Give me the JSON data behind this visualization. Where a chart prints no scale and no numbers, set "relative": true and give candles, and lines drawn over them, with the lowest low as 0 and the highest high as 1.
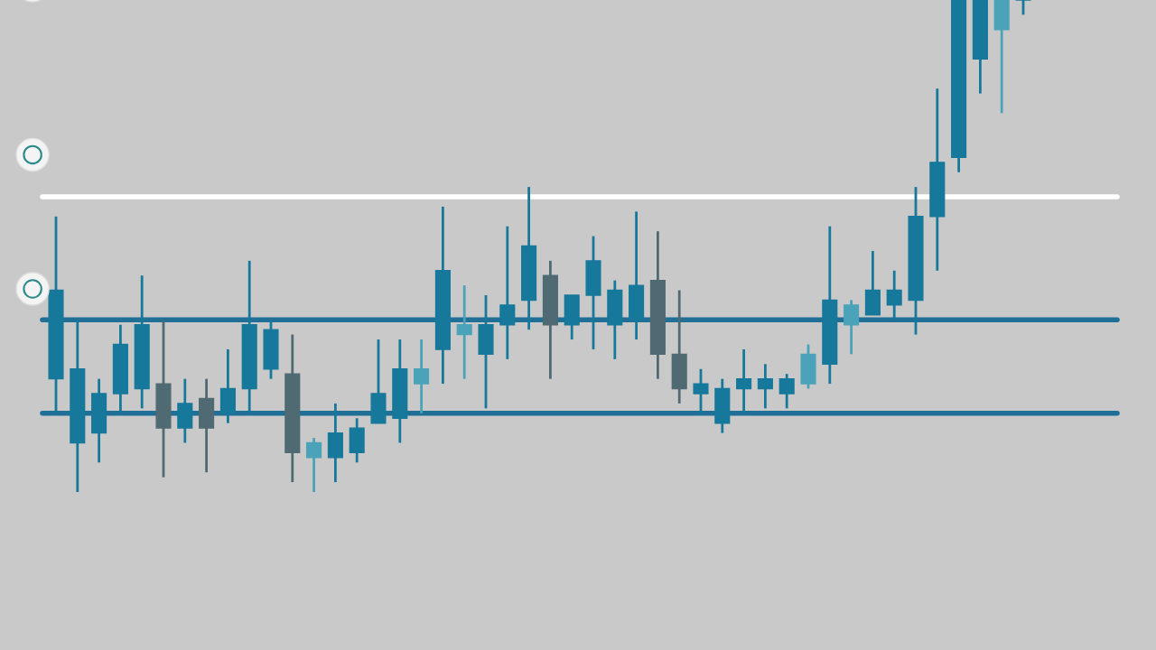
{
  "chart_data": {
    "type": "candlestick",
    "relative": true,
    "categories": [
      null,
      null,
      null,
      null,
      null,
      null,
      null,
      null,
      null,
      null,
      null,
      null,
      null,
      null,
      null,
      null,
      null,
      null,
      null,
      null,
      null,
      null,
      null,
      null,
      null,
      null,
      null,
      null,
      null,
      null,
      null,
      null,
      null,
      null,
      null,
      null,
      null,
      null,
      null,
      null,
      null,
      null,
      null,
      null,
      null,
      null
    ],
    "ohlc": [
      [
        0.23,
        0.56,
        0.16,
        0.41
      ],
      [
        0.1,
        0.35,
        0,
        0.25
      ],
      [
        0.12,
        0.23,
        0.06,
        0.2
      ],
      [
        0.2,
        0.34,
        0.16,
        0.3
      ],
      [
        0.21,
        0.44,
        0.17,
        0.34
      ],
      [
        0.22,
        0.35,
        0.03,
        0.13
      ],
      [
        0.13,
        0.23,
        0.1,
        0.18
      ],
      [
        0.19,
        0.23,
        0.04,
        0.13
      ],
      [
        0.16,
        0.29,
        0.14,
        0.21
      ],
      [
        0.21,
        0.47,
        0.16,
        0.34
      ],
      [
        0.25,
        0.35,
        0.23,
        0.33
      ],
      [
        0.24,
        0.32,
        0.02,
        0.08
      ],
      [
        0.07,
        0.11,
        0,
        0.1
      ],
      [
        0.07,
        0.18,
        0.02,
        0.12
      ],
      [
        0.08,
        0.15,
        0.06,
        0.13
      ],
      [
        0.14,
        0.31,
        0.14,
        0.2
      ],
      [
        0.15,
        0.31,
        0.1,
        0.25
      ],
      [
        0.22,
        0.31,
        0.16,
        0.25
      ],
      [
        0.29,
        0.58,
        0.22,
        0.45
      ],
      [
        0.32,
        0.42,
        0.23,
        0.34
      ],
      [
        0.28,
        0.4,
        0.17,
        0.34
      ],
      [
        0.34,
        0.54,
        0.27,
        0.38
      ],
      [
        0.39,
        0.62,
        0.33,
        0.5
      ],
      [
        0.44,
        0.47,
        0.23,
        0.34
      ],
      [
        0.34,
        0.4,
        0.31,
        0.4
      ],
      [
        0.4,
        0.52,
        0.29,
        0.47
      ],
      [
        0.34,
        0.43,
        0.27,
        0.41
      ],
      [
        0.35,
        0.57,
        0.31,
        0.42
      ],
      [
        0.43,
        0.53,
        0.23,
        0.28
      ],
      [
        0.28,
        0.41,
        0.18,
        0.21
      ],
      [
        0.2,
        0.25,
        0.16,
        0.22
      ],
      [
        0.14,
        0.23,
        0.12,
        0.21
      ],
      [
        0.21,
        0.29,
        0.16,
        0.23
      ],
      [
        0.21,
        0.26,
        0.17,
        0.23
      ],
      [
        0.2,
        0.24,
        0.17,
        0.23
      ],
      [
        0.22,
        0.3,
        0.21,
        0.28
      ],
      [
        0.26,
        0.54,
        0.22,
        0.39
      ],
      [
        0.34,
        0.39,
        0.28,
        0.38
      ],
      [
        0.36,
        0.49,
        0.36,
        0.41
      ],
      [
        0.38,
        0.45,
        0.35,
        0.41
      ],
      [
        0.39,
        0.62,
        0.32,
        0.56
      ],
      [
        0.56,
        0.82,
        0.45,
        0.67
      ],
      [
        0.68,
        1,
        0.65,
        1
      ],
      [
        0.88,
        1,
        0.81,
        1
      ],
      [
        0.94,
        1,
        0.77,
        1
      ],
      [
        1,
        1,
        0.97,
        1
      ]
    ],
    "colors": [
      "#16789a",
      "#16789a",
      "#16789a",
      "#16789a",
      "#16789a",
      "#4f6a72",
      "#16789a",
      "#4f6a72",
      "#16789a",
      "#16789a",
      "#16789a",
      "#4f6a72",
      "#4aa3b8",
      "#16789a",
      "#16789a",
      "#16789a",
      "#16789a",
      "#4aa3b8",
      "#16789a",
      "#4aa3b8",
      "#16789a",
      "#16789a",
      "#16789a",
      "#4f6a72",
      "#16789a",
      "#16789a",
      "#16789a",
      "#16789a",
      "#4f6a72",
      "#4f6a72",
      "#16789a",
      "#16789a",
      "#16789a",
      "#16789a",
      "#16789a",
      "#4aa3b8",
      "#16789a",
      "#4aa3b8",
      "#16789a",
      "#16789a",
      "#16789a",
      "#16789a",
      "#16789a",
      "#16789a",
      "#4aa3b8",
      "#16789a"
    ],
    "ref_lines": [
      {
        "axis": "y",
        "value": 0.6,
        "color": "#ffffff"
      },
      {
        "axis": "y",
        "value": 0.35,
        "color": "#1f6f96"
      },
      {
        "axis": "y",
        "value": 0.16,
        "color": "#1f6f96"
      }
    ]
  }
}
